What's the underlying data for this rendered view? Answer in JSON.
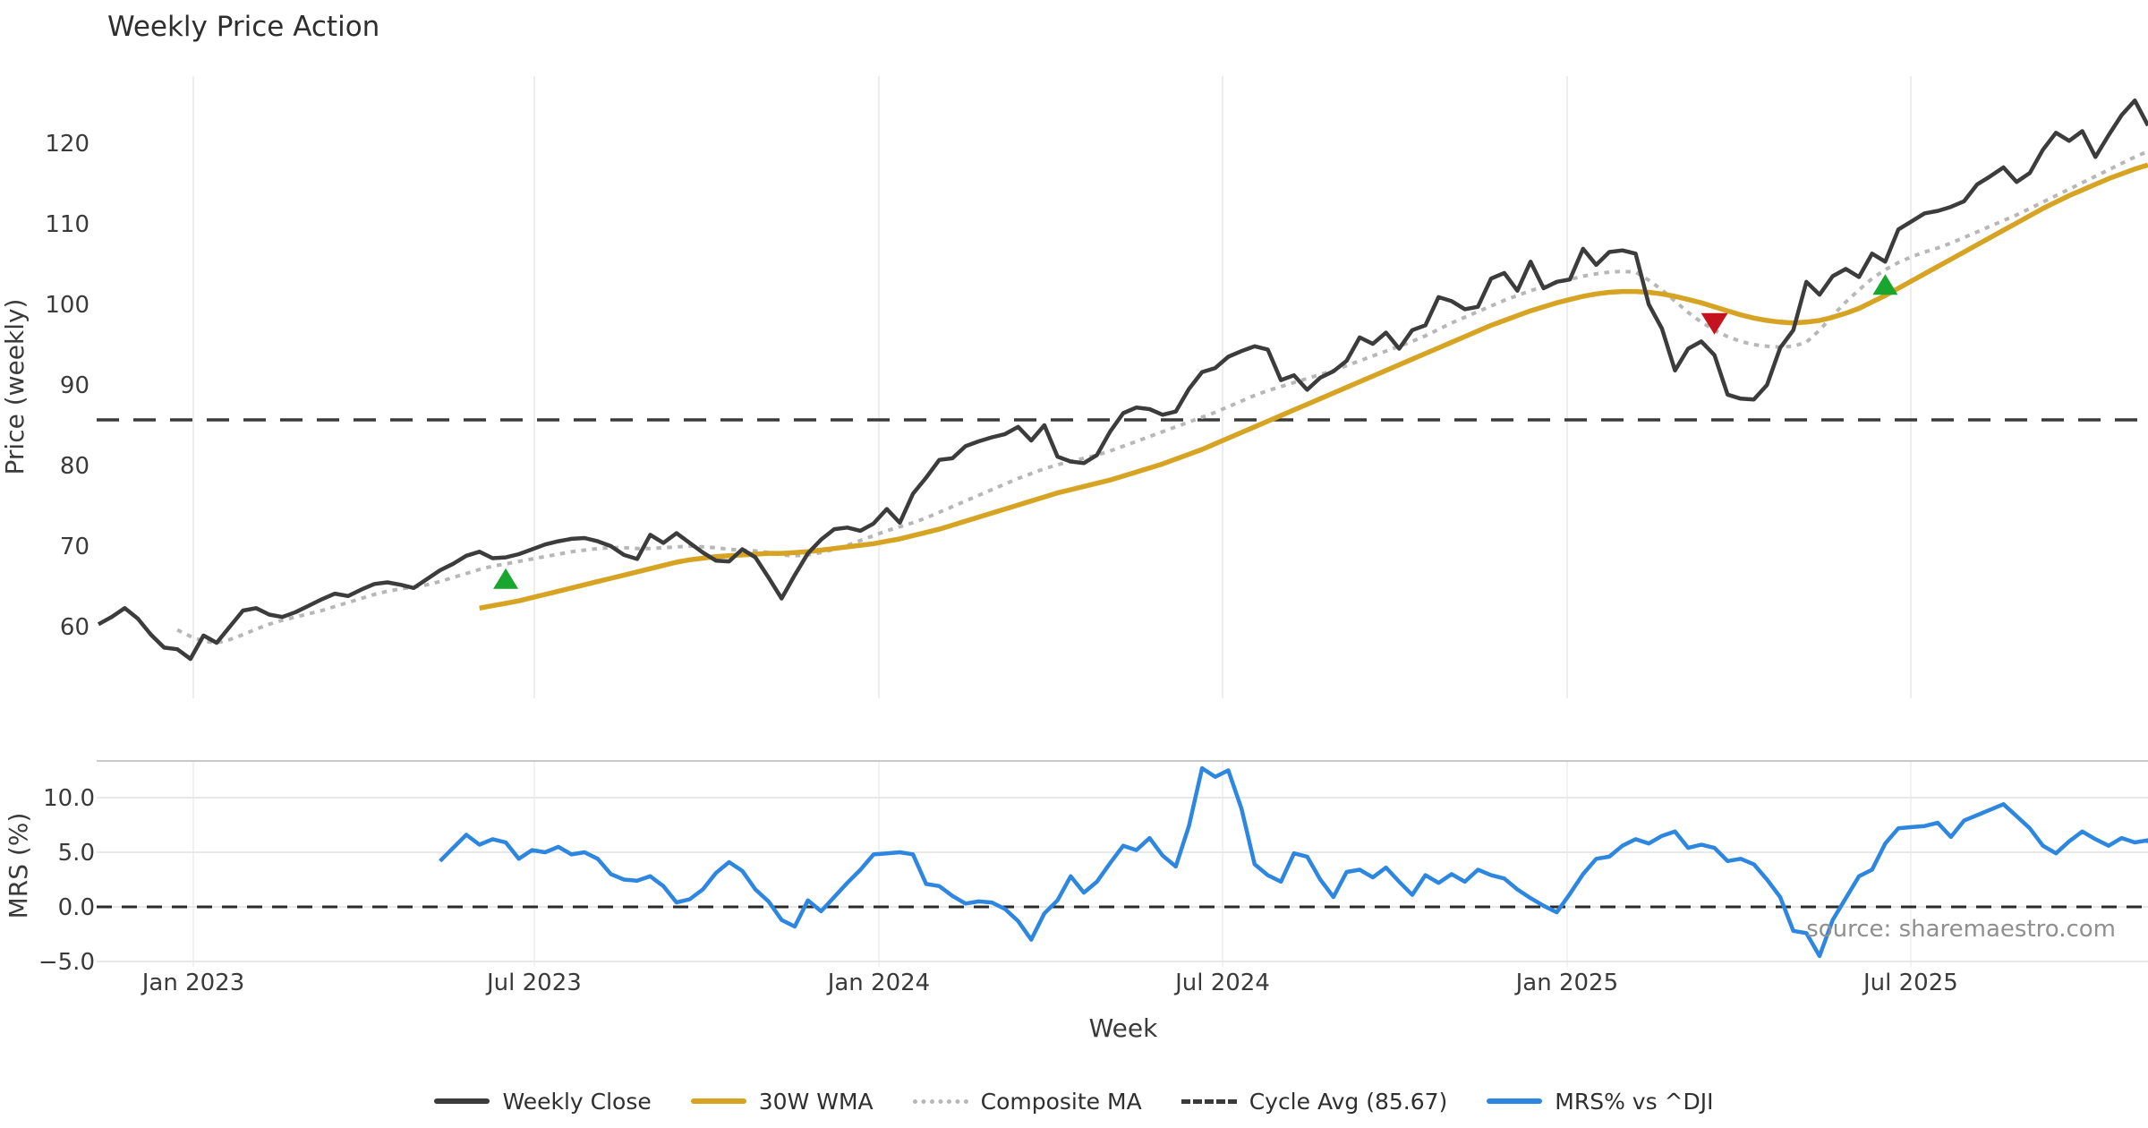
{
  "background": "#ffffff",
  "legend": {
    "position": "bottom-center",
    "items": [
      {
        "label": "Weekly Close",
        "color": "#3c3c3c",
        "style": "solid"
      },
      {
        "label": "30W WMA",
        "color": "#d7a322",
        "style": "solid"
      },
      {
        "label": "Composite MA",
        "color": "#b7b7b7",
        "style": "dotted"
      },
      {
        "label": "Cycle Avg (85.67)",
        "color": "#3a3a3a",
        "style": "dashed"
      },
      {
        "label": "MRS% vs ^DJI",
        "color": "#2d87e0",
        "style": "solid"
      }
    ]
  },
  "chart_data": [
    {
      "type": "line",
      "panel": "price",
      "title": "Weekly Price Action",
      "ylabel": "Price (weekly)",
      "ylim": [
        52.2,
        128.3
      ],
      "grid": "vertical-only",
      "yticks": [
        {
          "value": 60,
          "label": "60"
        },
        {
          "value": 70,
          "label": "70"
        },
        {
          "value": 80,
          "label": "80"
        },
        {
          "value": 90,
          "label": "90"
        },
        {
          "value": 100,
          "label": "100"
        },
        {
          "value": 110,
          "label": "110"
        },
        {
          "value": 120,
          "label": "120"
        }
      ],
      "xticks": [
        {
          "week": 7.22,
          "label": "Jan 2023"
        },
        {
          "week": 33.17,
          "label": "Jul 2023"
        },
        {
          "week": 59.4,
          "label": "Jan 2024"
        },
        {
          "week": 85.56,
          "label": "Jul 2024"
        },
        {
          "week": 111.78,
          "label": "Jan 2025"
        },
        {
          "week": 137.94,
          "label": "Jul 2025"
        }
      ],
      "cycle_avg": 85.67,
      "series": [
        {
          "name": "Weekly Close",
          "color": "#3c3c3c",
          "style": "solid",
          "width": 4.5,
          "start_week": 0,
          "values": [
            60.3,
            61.2,
            62.3,
            61.0,
            59.0,
            57.4,
            57.2,
            56.0,
            58.9,
            58.0,
            60.0,
            62.0,
            62.3,
            61.5,
            61.2,
            61.8,
            62.6,
            63.4,
            64.1,
            63.8,
            64.6,
            65.3,
            65.5,
            65.2,
            64.8,
            65.9,
            67.0,
            67.8,
            68.8,
            69.3,
            68.5,
            68.6,
            69.0,
            69.6,
            70.2,
            70.6,
            70.9,
            71.0,
            70.6,
            70.0,
            68.9,
            68.4,
            71.4,
            70.4,
            71.6,
            70.4,
            69.2,
            68.2,
            68.1,
            69.6,
            68.6,
            66.1,
            63.5,
            66.4,
            69.1,
            70.8,
            72.1,
            72.3,
            71.9,
            72.8,
            74.6,
            72.9,
            76.5,
            78.5,
            80.7,
            80.9,
            82.4,
            83.0,
            83.5,
            83.9,
            84.8,
            83.1,
            85.0,
            81.1,
            80.5,
            80.3,
            81.3,
            84.2,
            86.5,
            87.2,
            87.0,
            86.3,
            86.7,
            89.5,
            91.6,
            92.1,
            93.5,
            94.2,
            94.8,
            94.4,
            90.6,
            91.2,
            89.4,
            90.9,
            91.7,
            93.0,
            95.9,
            95.1,
            96.5,
            94.5,
            96.8,
            97.4,
            100.9,
            100.4,
            99.4,
            99.7,
            103.2,
            103.9,
            101.7,
            105.3,
            102.0,
            102.8,
            103.1,
            106.9,
            104.9,
            106.5,
            106.7,
            106.3,
            100.0,
            97.0,
            91.8,
            94.5,
            95.4,
            93.7,
            88.8,
            88.3,
            88.2,
            90.0,
            94.6,
            96.8,
            102.8,
            101.2,
            103.5,
            104.4,
            103.4,
            106.3,
            105.3,
            109.3,
            110.3,
            111.3,
            111.6,
            112.1,
            112.8,
            114.9,
            115.9,
            117.0,
            115.2,
            116.3,
            119.2,
            121.3,
            120.3,
            121.5,
            118.3,
            121.0,
            123.5,
            125.3,
            122.2
          ]
        },
        {
          "name": "30W WMA",
          "color": "#d7a322",
          "style": "solid",
          "width": 5.5,
          "start_week": 29,
          "values": [
            62.3,
            62.6,
            62.9,
            63.2,
            63.6,
            64.0,
            64.4,
            64.8,
            65.2,
            65.6,
            66.0,
            66.4,
            66.8,
            67.2,
            67.6,
            68.0,
            68.3,
            68.5,
            68.7,
            68.8,
            68.9,
            69.0,
            69.1,
            69.1,
            69.2,
            69.3,
            69.5,
            69.7,
            69.9,
            70.1,
            70.3,
            70.6,
            70.9,
            71.3,
            71.7,
            72.1,
            72.6,
            73.1,
            73.6,
            74.1,
            74.6,
            75.1,
            75.6,
            76.1,
            76.6,
            77.0,
            77.4,
            77.8,
            78.2,
            78.7,
            79.2,
            79.7,
            80.2,
            80.8,
            81.4,
            82.0,
            82.7,
            83.4,
            84.1,
            84.8,
            85.5,
            86.2,
            86.9,
            87.6,
            88.3,
            89.0,
            89.7,
            90.4,
            91.1,
            91.8,
            92.5,
            93.2,
            93.9,
            94.6,
            95.3,
            96.0,
            96.7,
            97.4,
            98.0,
            98.6,
            99.2,
            99.7,
            100.2,
            100.6,
            101.0,
            101.3,
            101.5,
            101.6,
            101.6,
            101.5,
            101.3,
            101.0,
            100.6,
            100.2,
            99.7,
            99.2,
            98.7,
            98.3,
            98.0,
            97.8,
            97.7,
            97.8,
            98.0,
            98.4,
            98.9,
            99.5,
            100.3,
            101.1,
            102.0,
            102.9,
            103.8,
            104.7,
            105.6,
            106.5,
            107.4,
            108.3,
            109.2,
            110.1,
            111.0,
            111.9,
            112.7,
            113.5,
            114.2,
            114.9,
            115.6,
            116.2,
            116.8,
            117.3
          ]
        },
        {
          "name": "Composite MA",
          "color": "#b7b7b7",
          "style": "dotted",
          "width": 4,
          "start_week": 6,
          "values": [
            59.6,
            58.8,
            58.2,
            58.0,
            58.4,
            59.0,
            59.7,
            60.3,
            60.8,
            61.2,
            61.6,
            62.0,
            62.5,
            63.0,
            63.5,
            64.0,
            64.4,
            64.7,
            64.9,
            65.2,
            65.6,
            66.1,
            66.6,
            67.1,
            67.5,
            67.8,
            68.1,
            68.4,
            68.7,
            69.0,
            69.3,
            69.5,
            69.7,
            69.8,
            69.8,
            69.7,
            69.7,
            69.8,
            69.9,
            70.0,
            69.9,
            69.8,
            69.6,
            69.5,
            69.4,
            69.2,
            68.9,
            68.8,
            68.9,
            69.2,
            69.6,
            70.1,
            70.7,
            71.3,
            71.9,
            72.4,
            72.9,
            73.5,
            74.2,
            74.9,
            75.6,
            76.3,
            77.0,
            77.7,
            78.4,
            79.0,
            79.6,
            80.1,
            80.5,
            80.9,
            81.3,
            81.8,
            82.4,
            83.0,
            83.6,
            84.2,
            84.8,
            85.4,
            86.0,
            86.6,
            87.3,
            88.0,
            88.7,
            89.3,
            89.8,
            90.3,
            90.8,
            91.3,
            91.8,
            92.4,
            93.0,
            93.6,
            94.2,
            94.8,
            95.4,
            96.1,
            96.9,
            97.7,
            98.4,
            99.1,
            99.8,
            100.5,
            101.1,
            101.7,
            102.2,
            102.7,
            103.1,
            103.5,
            103.8,
            104.0,
            104.1,
            104.0,
            103.0,
            101.8,
            100.4,
            99.0,
            97.8,
            96.8,
            96.0,
            95.4,
            95.0,
            94.8,
            94.7,
            94.8,
            95.3,
            96.8,
            98.6,
            100.3,
            101.8,
            103.2,
            104.3,
            105.2,
            105.9,
            106.5,
            107.0,
            107.6,
            108.3,
            109.0,
            109.7,
            110.4,
            111.1,
            111.9,
            112.7,
            113.5,
            114.3,
            115.1,
            115.9,
            116.7,
            117.5,
            118.3,
            119.0
          ]
        }
      ],
      "signals": {
        "buy": {
          "color": "#18a62f",
          "points": [
            {
              "week": 31,
              "value": 65.8
            },
            {
              "week": 136,
              "value": 102.3
            }
          ]
        },
        "sell": {
          "color": "#c4121e",
          "points": [
            {
              "week": 123,
              "value": 97.7
            }
          ]
        }
      }
    },
    {
      "type": "line",
      "panel": "mrs",
      "ylabel": "MRS (%)",
      "xlabel": "Week",
      "source": "source: sharemaestro.com",
      "ylim": [
        -5.5,
        13.4
      ],
      "grid": "horizontal-and-vertical",
      "zero_line": 0.0,
      "yticks": [
        {
          "value": 10,
          "label": "10.0"
        },
        {
          "value": 5,
          "label": "5.0"
        },
        {
          "value": 0,
          "label": "0.0"
        },
        {
          "value": -5,
          "label": "−5.0"
        }
      ],
      "series": [
        {
          "name": "MRS% vs ^DJI",
          "color": "#2d87e0",
          "style": "solid",
          "width": 4.5,
          "start_week": 26,
          "values": [
            4.2,
            5.4,
            6.6,
            5.7,
            6.2,
            5.9,
            4.4,
            5.2,
            5.0,
            5.5,
            4.8,
            5.0,
            4.4,
            3.0,
            2.5,
            2.4,
            2.8,
            1.9,
            0.4,
            0.7,
            1.6,
            3.1,
            4.1,
            3.3,
            1.6,
            0.5,
            -1.2,
            -1.8,
            0.6,
            -0.4,
            0.9,
            2.2,
            3.4,
            4.8,
            4.9,
            5.0,
            4.8,
            2.1,
            1.9,
            1.0,
            0.3,
            0.5,
            0.4,
            -0.2,
            -1.3,
            -3.0,
            -0.6,
            0.6,
            2.8,
            1.3,
            2.3,
            4.0,
            5.6,
            5.2,
            6.3,
            4.7,
            3.7,
            7.4,
            12.7,
            11.9,
            12.5,
            9.0,
            3.9,
            2.9,
            2.3,
            4.9,
            4.6,
            2.5,
            0.9,
            3.2,
            3.4,
            2.7,
            3.6,
            2.3,
            1.1,
            2.9,
            2.2,
            3.0,
            2.3,
            3.4,
            2.9,
            2.6,
            1.6,
            0.8,
            0.1,
            -0.5,
            1.2,
            3.0,
            4.4,
            4.6,
            5.6,
            6.2,
            5.8,
            6.5,
            6.9,
            5.4,
            5.7,
            5.4,
            4.2,
            4.4,
            3.9,
            2.5,
            0.9,
            -2.2,
            -2.4,
            -4.5,
            -1.2,
            0.8,
            2.8,
            3.4,
            5.8,
            7.2,
            7.3,
            7.4,
            7.7,
            6.4,
            7.9,
            8.4,
            8.9,
            9.4,
            8.3,
            7.2,
            5.6,
            4.9,
            6.0,
            6.9,
            6.2,
            5.6,
            6.3,
            5.9,
            6.1,
            4.6
          ]
        }
      ]
    }
  ]
}
